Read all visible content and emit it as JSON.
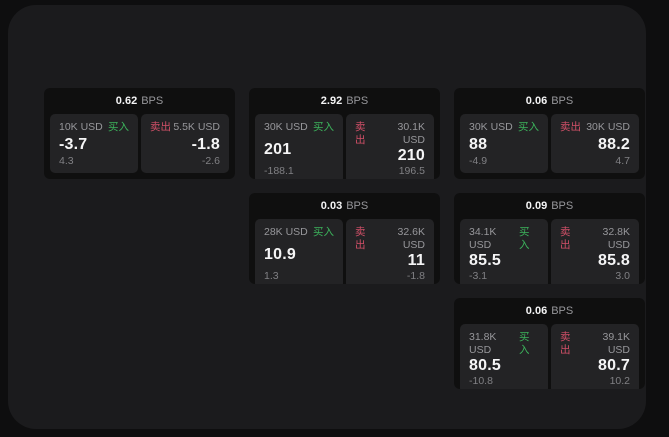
{
  "theme": {
    "window-bg": "#1b1b1d",
    "card-bg": "#0f0f0f",
    "tile-bg": "#232325",
    "buy-green": "#3cb45c",
    "sell-red": "#d25068",
    "text-white": "#f5f5f6",
    "text-gray": "#97979b",
    "text-dim": "#808084"
  },
  "bps_unit": "BPS",
  "cards": [
    {
      "bps_value": "0.62",
      "buy": {
        "label": "买入",
        "amount": "10K USD",
        "price": "-3.7",
        "delta": "4.3"
      },
      "sell": {
        "label": "卖出",
        "amount": "5.5K USD",
        "price": "-1.8",
        "delta": "-2.6"
      }
    },
    {
      "bps_value": "2.92",
      "buy": {
        "label": "买入",
        "amount": "30K USD",
        "price": "201",
        "delta": "-188.1"
      },
      "sell": {
        "label": "卖出",
        "amount": "30.1K USD",
        "price": "210",
        "delta": "196.5"
      }
    },
    {
      "bps_value": "0.06",
      "buy": {
        "label": "买入",
        "amount": "30K USD",
        "price": "88",
        "delta": "-4.9"
      },
      "sell": {
        "label": "卖出",
        "amount": "30K USD",
        "price": "88.2",
        "delta": "4.7"
      }
    },
    {
      "bps_value": "0.03",
      "buy": {
        "label": "买入",
        "amount": "28K USD",
        "price": "10.9",
        "delta": "1.3"
      },
      "sell": {
        "label": "卖出",
        "amount": "32.6K USD",
        "price": "11",
        "delta": "-1.8"
      }
    },
    {
      "bps_value": "0.09",
      "buy": {
        "label": "买入",
        "amount": "34.1K USD",
        "price": "85.5",
        "delta": "-3.1"
      },
      "sell": {
        "label": "卖出",
        "amount": "32.8K USD",
        "price": "85.8",
        "delta": "3.0"
      }
    },
    {
      "bps_value": "0.06",
      "buy": {
        "label": "买入",
        "amount": "31.8K USD",
        "price": "80.5",
        "delta": "-10.8"
      },
      "sell": {
        "label": "卖出",
        "amount": "39.1K USD",
        "price": "80.7",
        "delta": "10.2"
      }
    }
  ]
}
